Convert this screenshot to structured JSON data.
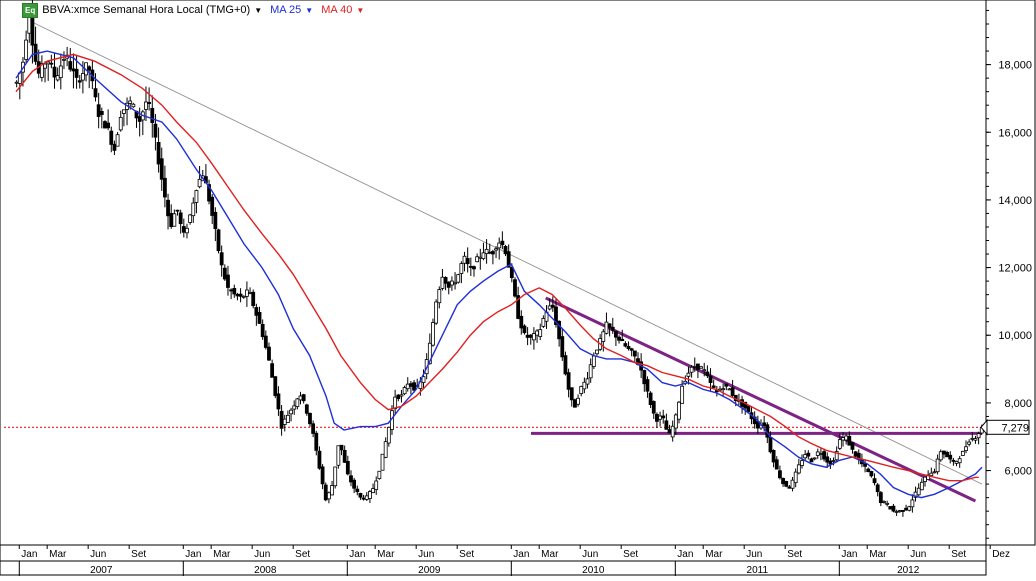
{
  "header": {
    "badge": "Eq",
    "symbol": "BBVA:xmce Semanal Hora Local (TMG+0)",
    "ma_short_label": "MA 25",
    "ma_long_label": "MA 40",
    "dropdown_icon": "caret-down-icon",
    "badge_color": "#3a9a3a"
  },
  "chart_data": {
    "type": "candlestick",
    "title": "",
    "xlabel": "",
    "ylabel": "",
    "x_range": [
      2006.98,
      2012.87
    ],
    "ylim": [
      3.8,
      19.85
    ],
    "y_ticks": [
      6000,
      8000,
      10000,
      12000,
      14000,
      16000,
      18000
    ],
    "y_tick_labels": [
      "6,000",
      "8,000",
      "10,000",
      "12,000",
      "14,000",
      "16,000",
      "18,000"
    ],
    "month_ticks": [
      {
        "x": 2007.0,
        "label": "Jan"
      },
      {
        "x": 2007.17,
        "label": "Mar"
      },
      {
        "x": 2007.42,
        "label": "Jun"
      },
      {
        "x": 2007.67,
        "label": "Set"
      },
      {
        "x": 2008.0,
        "label": "Jan"
      },
      {
        "x": 2008.17,
        "label": "Mar"
      },
      {
        "x": 2008.42,
        "label": "Jun"
      },
      {
        "x": 2008.67,
        "label": "Set"
      },
      {
        "x": 2009.0,
        "label": "Jan"
      },
      {
        "x": 2009.17,
        "label": "Mar"
      },
      {
        "x": 2009.42,
        "label": "Jun"
      },
      {
        "x": 2009.67,
        "label": "Set"
      },
      {
        "x": 2010.0,
        "label": "Jan"
      },
      {
        "x": 2010.17,
        "label": "Mar"
      },
      {
        "x": 2010.42,
        "label": "Jun"
      },
      {
        "x": 2010.67,
        "label": "Set"
      },
      {
        "x": 2011.0,
        "label": "Jan"
      },
      {
        "x": 2011.17,
        "label": "Mar"
      },
      {
        "x": 2011.42,
        "label": "Jun"
      },
      {
        "x": 2011.67,
        "label": "Set"
      },
      {
        "x": 2012.0,
        "label": "Jan"
      },
      {
        "x": 2012.17,
        "label": "Mar"
      },
      {
        "x": 2012.42,
        "label": "Jun"
      },
      {
        "x": 2012.67,
        "label": "Set"
      },
      {
        "x": 2012.92,
        "label": "Dez"
      }
    ],
    "year_labels": [
      {
        "x": 2007.5,
        "label": "2007"
      },
      {
        "x": 2008.5,
        "label": "2008"
      },
      {
        "x": 2009.5,
        "label": "2009"
      },
      {
        "x": 2010.5,
        "label": "2010"
      },
      {
        "x": 2011.5,
        "label": "2011"
      },
      {
        "x": 2012.42,
        "label": "2012"
      }
    ],
    "price_points": [
      [
        2006.98,
        17.4
      ],
      [
        2007.02,
        18.0
      ],
      [
        2007.06,
        19.6
      ],
      [
        2007.09,
        18.3
      ],
      [
        2007.12,
        17.7
      ],
      [
        2007.17,
        18.2
      ],
      [
        2007.22,
        17.6
      ],
      [
        2007.28,
        18.3
      ],
      [
        2007.35,
        17.5
      ],
      [
        2007.42,
        18.0
      ],
      [
        2007.48,
        16.6
      ],
      [
        2007.53,
        16.2
      ],
      [
        2007.58,
        15.5
      ],
      [
        2007.62,
        16.6
      ],
      [
        2007.68,
        16.9
      ],
      [
        2007.73,
        16.3
      ],
      [
        2007.78,
        17.0
      ],
      [
        2007.82,
        16.0
      ],
      [
        2007.87,
        14.6
      ],
      [
        2007.92,
        13.2
      ],
      [
        2007.96,
        13.8
      ],
      [
        2008.0,
        12.9
      ],
      [
        2008.04,
        13.5
      ],
      [
        2008.08,
        14.4
      ],
      [
        2008.12,
        14.8
      ],
      [
        2008.15,
        14.2
      ],
      [
        2008.19,
        13.2
      ],
      [
        2008.23,
        12.1
      ],
      [
        2008.27,
        11.4
      ],
      [
        2008.31,
        11.2
      ],
      [
        2008.35,
        11.1
      ],
      [
        2008.4,
        11.3
      ],
      [
        2008.44,
        10.7
      ],
      [
        2008.48,
        10.1
      ],
      [
        2008.52,
        9.3
      ],
      [
        2008.56,
        8.3
      ],
      [
        2008.6,
        7.3
      ],
      [
        2008.63,
        7.6
      ],
      [
        2008.67,
        7.9
      ],
      [
        2008.71,
        8.3
      ],
      [
        2008.75,
        7.8
      ],
      [
        2008.79,
        7.1
      ],
      [
        2008.83,
        6.1
      ],
      [
        2008.87,
        5.1
      ],
      [
        2008.91,
        5.6
      ],
      [
        2008.95,
        6.9
      ],
      [
        2009.0,
        5.9
      ],
      [
        2009.04,
        5.5
      ],
      [
        2009.08,
        5.2
      ],
      [
        2009.12,
        5.2
      ],
      [
        2009.16,
        5.5
      ],
      [
        2009.2,
        6.1
      ],
      [
        2009.25,
        7.2
      ],
      [
        2009.29,
        8.2
      ],
      [
        2009.33,
        8.2
      ],
      [
        2009.37,
        8.6
      ],
      [
        2009.42,
        8.4
      ],
      [
        2009.46,
        8.7
      ],
      [
        2009.5,
        9.6
      ],
      [
        2009.54,
        11.0
      ],
      [
        2009.58,
        11.8
      ],
      [
        2009.62,
        11.4
      ],
      [
        2009.67,
        11.7
      ],
      [
        2009.71,
        12.3
      ],
      [
        2009.75,
        11.9
      ],
      [
        2009.79,
        12.2
      ],
      [
        2009.83,
        12.5
      ],
      [
        2009.88,
        12.4
      ],
      [
        2009.92,
        12.8
      ],
      [
        2009.96,
        12.6
      ],
      [
        2010.0,
        11.7
      ],
      [
        2010.04,
        10.6
      ],
      [
        2010.08,
        10.0
      ],
      [
        2010.12,
        9.9
      ],
      [
        2010.17,
        10.1
      ],
      [
        2010.21,
        10.7
      ],
      [
        2010.25,
        10.9
      ],
      [
        2010.28,
        10.2
      ],
      [
        2010.31,
        9.4
      ],
      [
        2010.35,
        8.4
      ],
      [
        2010.38,
        7.8
      ],
      [
        2010.42,
        8.4
      ],
      [
        2010.46,
        8.7
      ],
      [
        2010.5,
        9.4
      ],
      [
        2010.54,
        9.8
      ],
      [
        2010.58,
        10.3
      ],
      [
        2010.62,
        10.1
      ],
      [
        2010.67,
        9.8
      ],
      [
        2010.71,
        9.6
      ],
      [
        2010.75,
        9.4
      ],
      [
        2010.79,
        9.0
      ],
      [
        2010.83,
        8.3
      ],
      [
        2010.88,
        7.5
      ],
      [
        2010.92,
        7.6
      ],
      [
        2010.96,
        7.0
      ],
      [
        2011.0,
        7.5
      ],
      [
        2011.04,
        8.5
      ],
      [
        2011.08,
        8.9
      ],
      [
        2011.12,
        9.1
      ],
      [
        2011.17,
        9.0
      ],
      [
        2011.21,
        8.6
      ],
      [
        2011.25,
        8.3
      ],
      [
        2011.29,
        8.5
      ],
      [
        2011.33,
        8.4
      ],
      [
        2011.37,
        8.1
      ],
      [
        2011.42,
        7.9
      ],
      [
        2011.46,
        7.6
      ],
      [
        2011.5,
        7.3
      ],
      [
        2011.54,
        7.4
      ],
      [
        2011.58,
        6.6
      ],
      [
        2011.62,
        6.0
      ],
      [
        2011.66,
        5.6
      ],
      [
        2011.7,
        5.5
      ],
      [
        2011.75,
        6.1
      ],
      [
        2011.79,
        6.5
      ],
      [
        2011.83,
        6.3
      ],
      [
        2011.88,
        6.6
      ],
      [
        2011.92,
        6.3
      ],
      [
        2011.96,
        6.2
      ],
      [
        2012.0,
        6.9
      ],
      [
        2012.04,
        7.0
      ],
      [
        2012.08,
        6.6
      ],
      [
        2012.12,
        6.3
      ],
      [
        2012.17,
        6.0
      ],
      [
        2012.21,
        5.7
      ],
      [
        2012.25,
        5.1
      ],
      [
        2012.29,
        5.0
      ],
      [
        2012.33,
        4.8
      ],
      [
        2012.37,
        4.8
      ],
      [
        2012.42,
        4.9
      ],
      [
        2012.46,
        5.3
      ],
      [
        2012.5,
        5.6
      ],
      [
        2012.54,
        5.9
      ],
      [
        2012.58,
        6.0
      ],
      [
        2012.62,
        6.6
      ],
      [
        2012.66,
        6.4
      ],
      [
        2012.7,
        6.2
      ],
      [
        2012.75,
        6.5
      ],
      [
        2012.79,
        6.9
      ],
      [
        2012.83,
        7.0
      ],
      [
        2012.87,
        7.25
      ]
    ],
    "series": [
      {
        "name": "MA 25",
        "color": "#1f2fd6",
        "points": [
          [
            2006.98,
            17.6
          ],
          [
            2007.08,
            18.3
          ],
          [
            2007.17,
            18.4
          ],
          [
            2007.33,
            18.2
          ],
          [
            2007.46,
            17.6
          ],
          [
            2007.62,
            16.9
          ],
          [
            2007.75,
            16.5
          ],
          [
            2007.87,
            16.3
          ],
          [
            2007.96,
            15.8
          ],
          [
            2008.08,
            14.9
          ],
          [
            2008.17,
            14.3
          ],
          [
            2008.27,
            13.5
          ],
          [
            2008.37,
            12.7
          ],
          [
            2008.48,
            12.0
          ],
          [
            2008.58,
            11.2
          ],
          [
            2008.67,
            10.2
          ],
          [
            2008.77,
            9.4
          ],
          [
            2008.87,
            8.2
          ],
          [
            2008.92,
            7.4
          ],
          [
            2008.98,
            7.2
          ],
          [
            2009.08,
            7.3
          ],
          [
            2009.17,
            7.3
          ],
          [
            2009.25,
            7.4
          ],
          [
            2009.33,
            7.9
          ],
          [
            2009.42,
            8.4
          ],
          [
            2009.5,
            9.2
          ],
          [
            2009.58,
            10.0
          ],
          [
            2009.67,
            10.9
          ],
          [
            2009.75,
            11.3
          ],
          [
            2009.83,
            11.6
          ],
          [
            2009.92,
            11.9
          ],
          [
            2010.0,
            12.1
          ],
          [
            2010.08,
            11.3
          ],
          [
            2010.17,
            10.9
          ],
          [
            2010.25,
            10.5
          ],
          [
            2010.33,
            10.1
          ],
          [
            2010.42,
            9.6
          ],
          [
            2010.5,
            9.4
          ],
          [
            2010.58,
            9.3
          ],
          [
            2010.67,
            9.3
          ],
          [
            2010.75,
            9.2
          ],
          [
            2010.83,
            9.0
          ],
          [
            2010.92,
            8.6
          ],
          [
            2011.0,
            8.5
          ],
          [
            2011.08,
            8.6
          ],
          [
            2011.17,
            8.4
          ],
          [
            2011.25,
            8.3
          ],
          [
            2011.33,
            8.1
          ],
          [
            2011.42,
            7.8
          ],
          [
            2011.5,
            7.5
          ],
          [
            2011.58,
            7.0
          ],
          [
            2011.67,
            6.7
          ],
          [
            2011.75,
            6.4
          ],
          [
            2011.83,
            6.2
          ],
          [
            2011.92,
            6.1
          ],
          [
            2012.0,
            6.3
          ],
          [
            2012.08,
            6.4
          ],
          [
            2012.17,
            6.2
          ],
          [
            2012.25,
            5.9
          ],
          [
            2012.33,
            5.5
          ],
          [
            2012.42,
            5.3
          ],
          [
            2012.5,
            5.2
          ],
          [
            2012.58,
            5.3
          ],
          [
            2012.67,
            5.5
          ],
          [
            2012.75,
            5.7
          ],
          [
            2012.83,
            5.9
          ],
          [
            2012.87,
            6.1
          ]
        ]
      },
      {
        "name": "MA 40",
        "color": "#e02020",
        "points": [
          [
            2006.98,
            17.2
          ],
          [
            2007.08,
            17.8
          ],
          [
            2007.17,
            18.1
          ],
          [
            2007.33,
            18.3
          ],
          [
            2007.46,
            18.1
          ],
          [
            2007.62,
            17.7
          ],
          [
            2007.75,
            17.3
          ],
          [
            2007.87,
            16.8
          ],
          [
            2007.96,
            16.3
          ],
          [
            2008.08,
            15.7
          ],
          [
            2008.17,
            15.1
          ],
          [
            2008.27,
            14.4
          ],
          [
            2008.37,
            13.7
          ],
          [
            2008.48,
            13.0
          ],
          [
            2008.58,
            12.4
          ],
          [
            2008.67,
            11.8
          ],
          [
            2008.77,
            11.0
          ],
          [
            2008.87,
            10.2
          ],
          [
            2008.96,
            9.4
          ],
          [
            2009.08,
            8.6
          ],
          [
            2009.17,
            8.1
          ],
          [
            2009.25,
            7.8
          ],
          [
            2009.33,
            7.9
          ],
          [
            2009.42,
            8.2
          ],
          [
            2009.5,
            8.6
          ],
          [
            2009.58,
            9.0
          ],
          [
            2009.67,
            9.5
          ],
          [
            2009.75,
            10.0
          ],
          [
            2009.83,
            10.4
          ],
          [
            2009.92,
            10.7
          ],
          [
            2010.0,
            10.9
          ],
          [
            2010.08,
            11.2
          ],
          [
            2010.17,
            11.4
          ],
          [
            2010.25,
            11.2
          ],
          [
            2010.33,
            10.8
          ],
          [
            2010.42,
            10.3
          ],
          [
            2010.5,
            9.9
          ],
          [
            2010.58,
            9.6
          ],
          [
            2010.67,
            9.4
          ],
          [
            2010.75,
            9.2
          ],
          [
            2010.83,
            9.1
          ],
          [
            2010.92,
            8.9
          ],
          [
            2011.0,
            8.8
          ],
          [
            2011.08,
            8.7
          ],
          [
            2011.17,
            8.5
          ],
          [
            2011.25,
            8.4
          ],
          [
            2011.33,
            8.2
          ],
          [
            2011.42,
            8.0
          ],
          [
            2011.5,
            7.8
          ],
          [
            2011.58,
            7.6
          ],
          [
            2011.67,
            7.3
          ],
          [
            2011.75,
            7.0
          ],
          [
            2011.83,
            6.8
          ],
          [
            2011.92,
            6.6
          ],
          [
            2012.0,
            6.5
          ],
          [
            2012.08,
            6.4
          ],
          [
            2012.17,
            6.3
          ],
          [
            2012.25,
            6.2
          ],
          [
            2012.33,
            6.1
          ],
          [
            2012.42,
            6.0
          ],
          [
            2012.5,
            5.9
          ],
          [
            2012.58,
            5.8
          ],
          [
            2012.67,
            5.7
          ],
          [
            2012.75,
            5.7
          ],
          [
            2012.83,
            5.8
          ],
          [
            2012.85,
            5.8
          ]
        ]
      }
    ],
    "trendlines": [
      {
        "kind": "long-downtrend",
        "color": "#909090",
        "from": [
          2007.06,
          19.3
        ],
        "to": [
          2012.87,
          5.6
        ]
      },
      {
        "kind": "purple-downtrend",
        "color": "#7d2384",
        "from": [
          2010.21,
          11.1
        ],
        "to": [
          2012.83,
          5.1
        ]
      },
      {
        "kind": "purple-support",
        "color": "#7d2384",
        "from": [
          2010.12,
          7.1
        ],
        "to": [
          2012.87,
          7.1
        ]
      }
    ],
    "current_price": {
      "value": 7.279,
      "label": "7,279",
      "line_color": "#e02020"
    },
    "grid": false,
    "legend": "top-left"
  }
}
